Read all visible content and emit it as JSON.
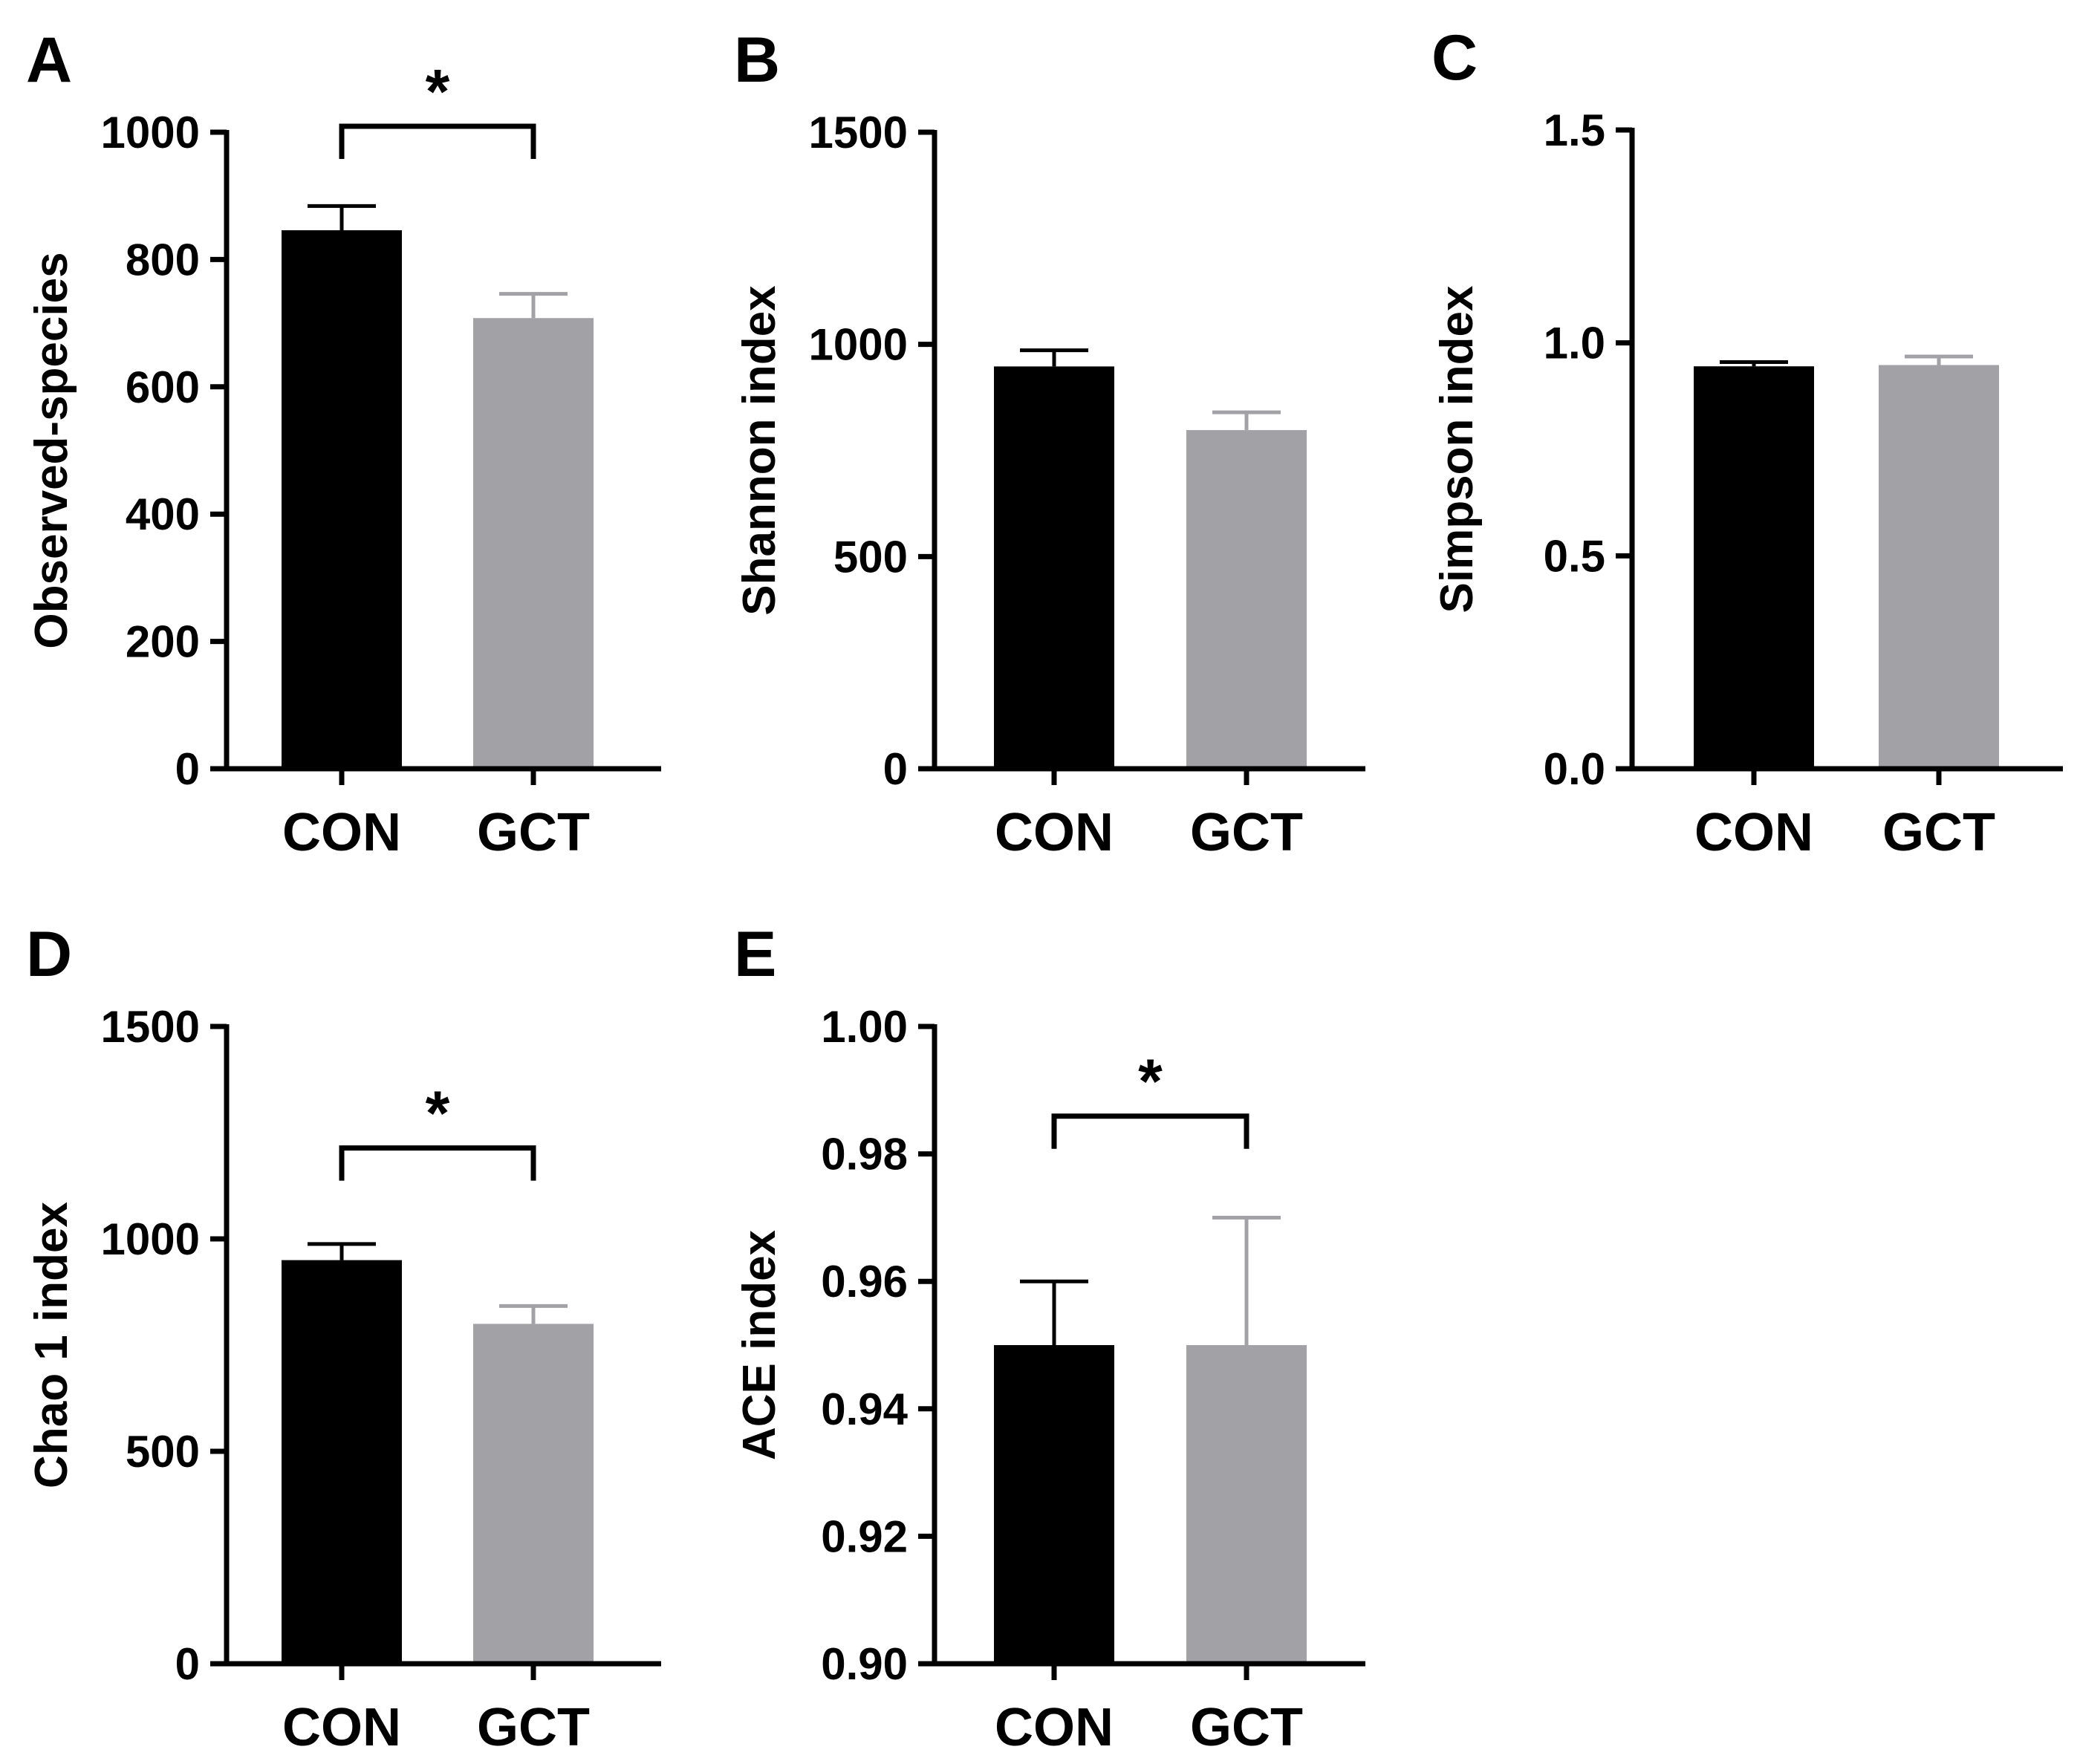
{
  "colors": {
    "con": "#000000",
    "gct": "#a2a2a6",
    "axis": "#000000"
  },
  "chart_data": [
    {
      "panel": "A",
      "type": "bar",
      "categories": [
        "CON",
        "GCT"
      ],
      "values": [
        846,
        708
      ],
      "errors": [
        38,
        38
      ],
      "ylabel": "Observed-species",
      "ylim": [
        0,
        1000
      ],
      "yticks": [
        0,
        200,
        400,
        600,
        800,
        1000
      ],
      "ytick_labels": [
        "0",
        "200",
        "400",
        "600",
        "800",
        "1000"
      ],
      "significance": "*",
      "sig_bar_at": 1000
    },
    {
      "panel": "B",
      "type": "bar",
      "categories": [
        "CON",
        "GCT"
      ],
      "values": [
        948,
        798
      ],
      "errors": [
        38,
        42
      ],
      "ylabel": "Shannon index",
      "ylim": [
        0,
        1500
      ],
      "yticks": [
        0,
        500,
        1000,
        1500
      ],
      "ytick_labels": [
        "0",
        "500",
        "1000",
        "1500"
      ],
      "significance": "",
      "sig_bar_at": null
    },
    {
      "panel": "C",
      "type": "bar",
      "categories": [
        "CON",
        "GCT"
      ],
      "values": [
        0.945,
        0.948
      ],
      "errors": [
        0.01,
        0.02
      ],
      "ylabel": "Simpson index",
      "ylim": [
        0,
        1.5
      ],
      "yticks": [
        0,
        0.5,
        1.0,
        1.5
      ],
      "ytick_labels": [
        "0.0",
        "0.5",
        "1.0",
        "1.5"
      ],
      "significance": "",
      "sig_bar_at": null
    },
    {
      "panel": "D",
      "type": "bar",
      "categories": [
        "CON",
        "GCT"
      ],
      "values": [
        950,
        800
      ],
      "errors": [
        38,
        42
      ],
      "ylabel": "Chao 1 index",
      "ylim": [
        0,
        1500
      ],
      "yticks": [
        0,
        500,
        1000,
        1500
      ],
      "ytick_labels": [
        "0",
        "500",
        "1000",
        "1500"
      ],
      "significance": "*",
      "sig_bar_at": 1200
    },
    {
      "panel": "E",
      "type": "bar",
      "categories": [
        "CON",
        "GCT"
      ],
      "values": [
        0.95,
        0.95
      ],
      "errors": [
        0.01,
        0.02
      ],
      "ylabel": "ACE index",
      "ylim": [
        0.9,
        1.0
      ],
      "yticks": [
        0.9,
        0.92,
        0.94,
        0.96,
        0.98,
        1.0
      ],
      "ytick_labels": [
        "0.90",
        "0.92",
        "0.94",
        "0.96",
        "0.98",
        "1.00"
      ],
      "significance": "*",
      "sig_bar_at": 0.985
    }
  ]
}
